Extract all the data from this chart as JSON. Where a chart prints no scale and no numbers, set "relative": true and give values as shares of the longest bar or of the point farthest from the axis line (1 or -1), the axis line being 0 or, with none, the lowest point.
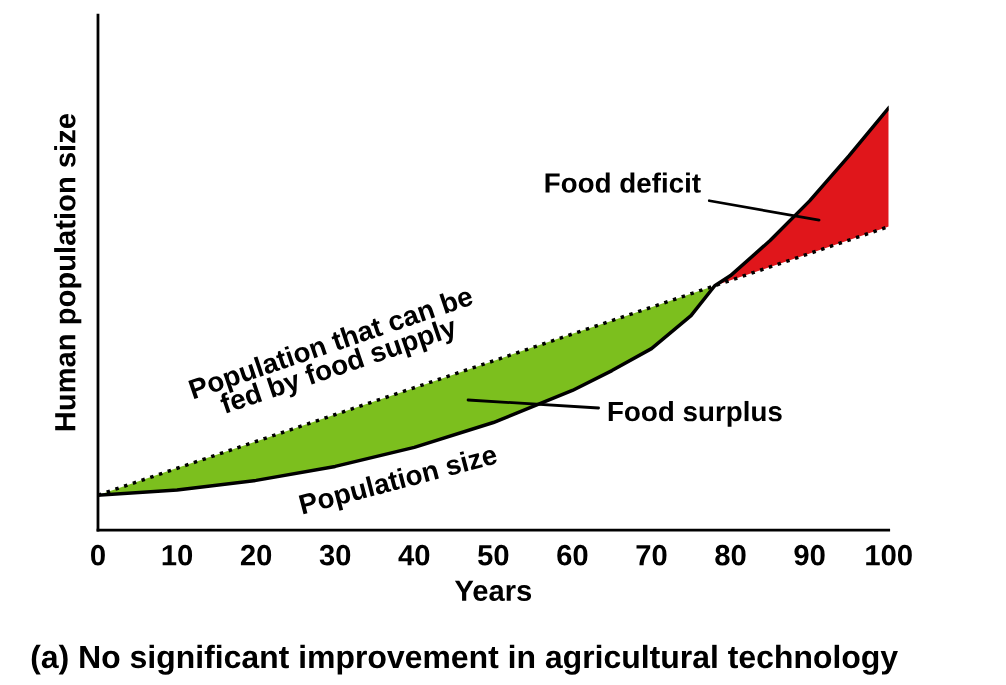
{
  "chart_data": {
    "type": "line",
    "title": "(a) No significant improvement in agricultural technology",
    "xlabel": "Years",
    "ylabel": "Human population size",
    "relative": true,
    "xlim": [
      0,
      100
    ],
    "xticks": [
      0,
      10,
      20,
      30,
      40,
      50,
      60,
      70,
      80,
      90,
      100
    ],
    "tick_labels": "x",
    "grid": false,
    "marker": "none",
    "series": [
      {
        "name": "Population size",
        "color": "#000000",
        "line_style": "solid",
        "x": [
          0,
          10,
          20,
          30,
          40,
          50,
          60,
          65,
          70,
          75,
          78,
          80,
          85,
          90,
          95,
          100
        ],
        "values": [
          0.083,
          0.095,
          0.118,
          0.151,
          0.196,
          0.255,
          0.331,
          0.378,
          0.43,
          0.508,
          0.579,
          0.603,
          0.686,
          0.78,
          0.887,
          1
        ]
      },
      {
        "name": "Population that can be\nfed by food supply",
        "color": "#000000",
        "line_style": "dotted",
        "x": [
          0,
          100
        ],
        "values": [
          0.083,
          0.719
        ]
      },
      {
        "type": "area",
        "color": "#7cbf1e",
        "x": [
          0,
          10,
          20,
          30,
          40,
          50,
          60,
          65,
          70,
          75,
          78
        ],
        "values": [
          0.083,
          0.147,
          0.21,
          0.274,
          0.337,
          0.401,
          0.465,
          0.496,
          0.528,
          0.56,
          0.579
        ]
      },
      {
        "type": "area",
        "color": "#e0161b",
        "x": [
          78,
          80,
          85,
          90,
          95,
          100
        ],
        "values": [
          0.579,
          0.603,
          0.686,
          0.78,
          0.887,
          1
        ]
      }
    ],
    "annotations": [
      "Food deficit",
      "Food surplus"
    ]
  }
}
